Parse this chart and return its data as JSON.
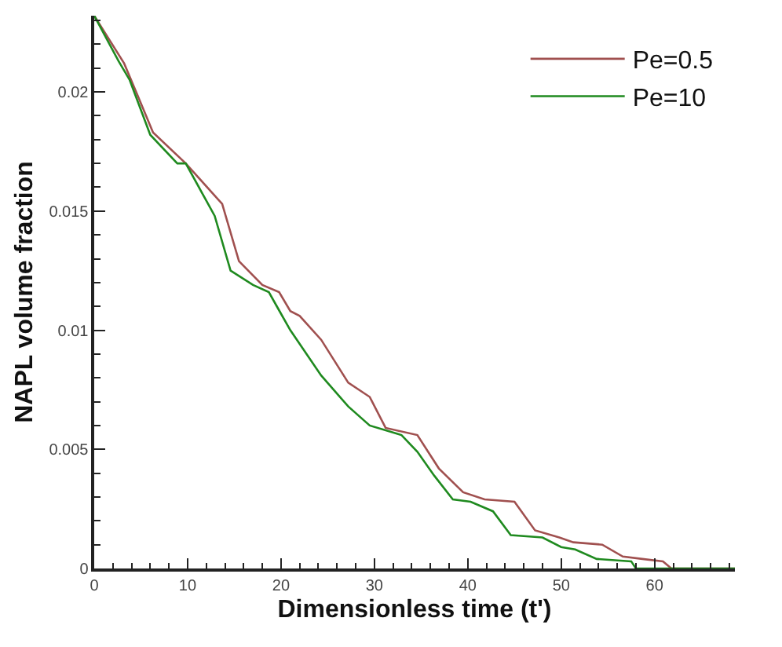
{
  "chart_data": {
    "type": "line",
    "xlabel": "Dimensionless time (t')",
    "ylabel": "NAPL volume fraction",
    "xlim": [
      0,
      68.6
    ],
    "ylim": [
      0,
      0.0232
    ],
    "xticks": [
      0,
      10,
      20,
      30,
      40,
      50,
      60
    ],
    "yticks": [
      0,
      0.005,
      0.01,
      0.015,
      0.02
    ],
    "legend": "top right",
    "marker": "none",
    "line_style": "solid",
    "series": [
      {
        "name": "Pe=0.5",
        "color": "#a0504f",
        "x": [
          0,
          3.2,
          4.6,
          6.3,
          9.8,
          13.7,
          15.5,
          18,
          19.8,
          21,
          22,
          24.3,
          27.2,
          29.5,
          31.2,
          34.6,
          36.9,
          39.5,
          41.8,
          45,
          47.2,
          49.8,
          51.3,
          54.4,
          56.6,
          58.7,
          60.9,
          61.8,
          68.6
        ],
        "values": [
          0.0232,
          0.0212,
          0.0199,
          0.0183,
          0.017,
          0.0153,
          0.0129,
          0.0119,
          0.0116,
          0.0108,
          0.0106,
          0.0096,
          0.0078,
          0.0072,
          0.0059,
          0.0056,
          0.0042,
          0.0032,
          0.0029,
          0.0028,
          0.0016,
          0.0013,
          0.0011,
          0.001,
          0.0005,
          0.0004,
          0.0003,
          0,
          0
        ]
      },
      {
        "name": "Pe=10",
        "color": "#1f8a1f",
        "x": [
          0,
          2.6,
          3.8,
          6,
          8.9,
          9.8,
          12.9,
          14.6,
          17,
          18.7,
          19.7,
          21,
          24.3,
          27.2,
          29.5,
          32.9,
          34.6,
          36.4,
          38.4,
          40.3,
          42.7,
          44.6,
          48,
          50,
          51.5,
          53.8,
          57.5,
          58,
          68.6
        ],
        "values": [
          0.0232,
          0.0213,
          0.0205,
          0.0182,
          0.017,
          0.017,
          0.0148,
          0.0125,
          0.0119,
          0.0116,
          0.0109,
          0.01,
          0.0081,
          0.0068,
          0.006,
          0.0056,
          0.0049,
          0.0039,
          0.0029,
          0.0028,
          0.0024,
          0.0014,
          0.0013,
          0.0009,
          0.0008,
          0.0004,
          0.0003,
          0,
          0
        ]
      }
    ]
  }
}
